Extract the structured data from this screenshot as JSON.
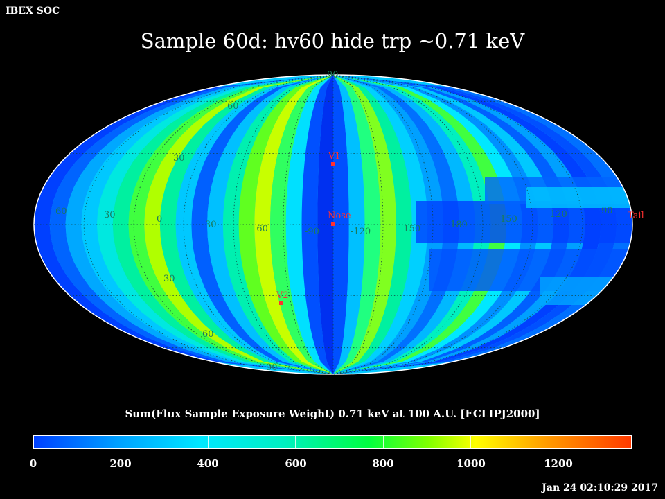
{
  "header": {
    "org": "IBEX SOC",
    "title": "Sample 60d: hv60 hide trp ~0.71 keV"
  },
  "map": {
    "longitude_labels": [
      "60",
      "30",
      "0",
      "30",
      "-60",
      "-90",
      "-120",
      "-150",
      "180",
      "150",
      "120",
      "90"
    ],
    "latitude_labels": [
      "90",
      "60",
      "30",
      "30",
      "60",
      "90"
    ],
    "markers": [
      {
        "label": "V1"
      },
      {
        "label": "Nose"
      },
      {
        "label": "V2"
      },
      {
        "label": "Tail"
      }
    ]
  },
  "colorbar": {
    "title": "Sum(Flux Sample Exposure Weight)  0.71 keV at 100 A.U. [ECLIPJ2000]",
    "labels": [
      "0",
      "200",
      "400",
      "600",
      "800",
      "1000",
      "1200"
    ],
    "range": [
      0,
      1370
    ]
  },
  "footer": {
    "timestamp": "Jan 24 02:10:29 2017"
  },
  "colors": {
    "marker": "#ff3030",
    "grid_label": "#1a7a5a"
  }
}
